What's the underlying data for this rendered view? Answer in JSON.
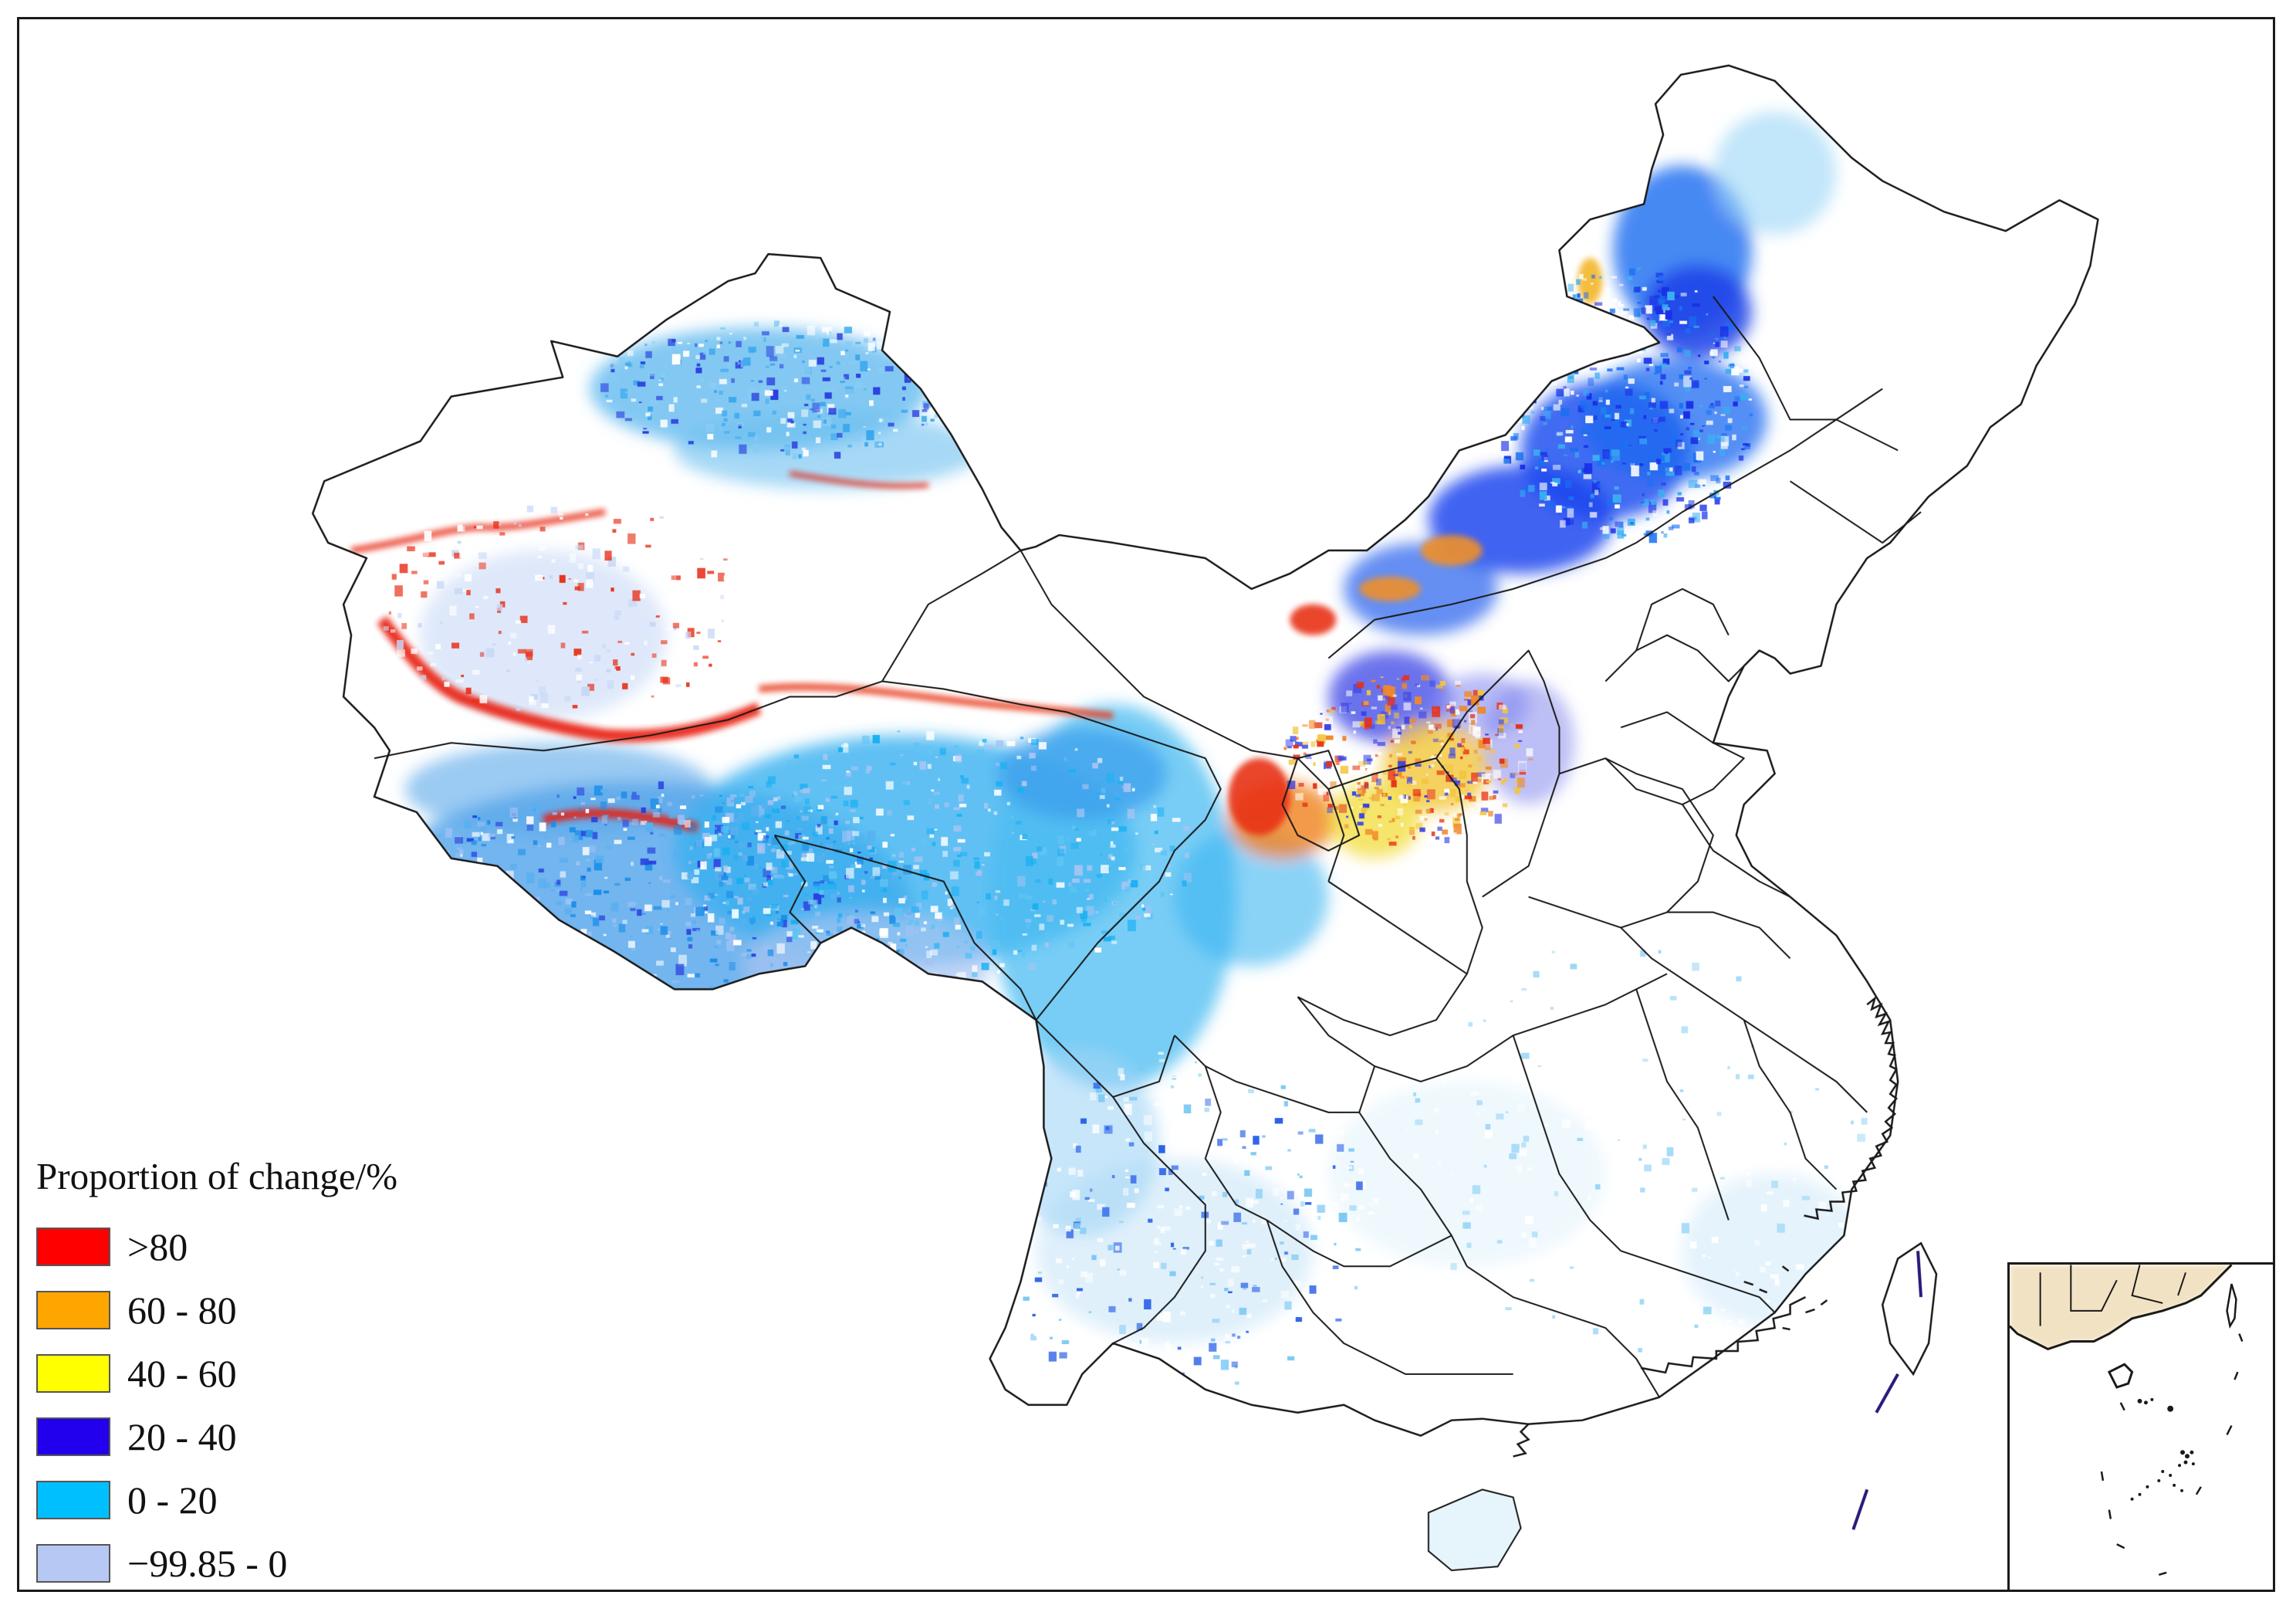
{
  "legend": {
    "title": "Proportion of change/%",
    "classes": [
      {
        "label": ">80",
        "color": "#ff0000"
      },
      {
        "label": "60 - 80",
        "color": "#ffa500"
      },
      {
        "label": "40 - 60",
        "color": "#ffff00"
      },
      {
        "label": "20 - 40",
        "color": "#2200ee"
      },
      {
        "label": "0 - 20",
        "color": "#00bfff"
      },
      {
        "label": "−99.85 - 0",
        "color": "#b8c8f4"
      }
    ]
  },
  "colors": {
    "boundary": "#1a1a1a",
    "background": "#ffffff"
  }
}
